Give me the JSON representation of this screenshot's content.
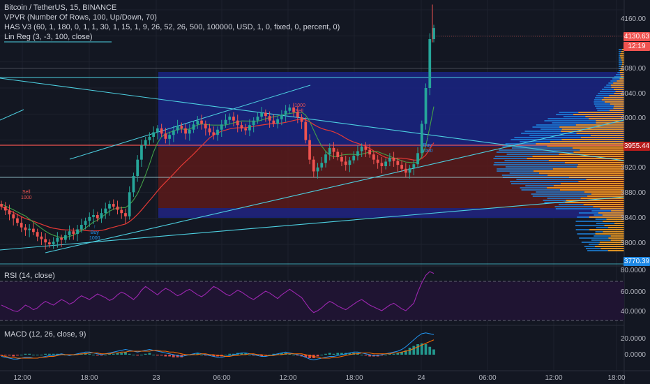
{
  "header": {
    "symbol_line": "Bitcoin / TetherUS, 15, BINANCE",
    "indicators": [
      "VPVR (Number Of Rows, 100, Up/Down, 70)",
      "HAS V3 (60, 1, 180, 0, 1, 1, 30, 1, 15, 1, 9, 26, 52, 26, 500, 100000, USD, 1, 0, fixed, 0, percent, 0)",
      "Lin Reg (3, -3, 100, close)"
    ]
  },
  "price_axis": {
    "ticks": [
      "4160.00",
      "4120.00",
      "4080.00",
      "4040.00",
      "4000.00",
      "3960.00",
      "3920.00",
      "3880.00",
      "3840.00",
      "3800.00"
    ],
    "last_price_label": "4130.63",
    "countdown_label": "12:19",
    "red_level_label": "3955.44",
    "low_level_label": "3770.39"
  },
  "rsi": {
    "title": "RSI (14, close)",
    "ticks": [
      "80.0000",
      "60.0000",
      "40.0000"
    ]
  },
  "macd": {
    "title": "MACD (12, 26, close, 9)",
    "ticks": [
      "20.0000",
      "0.0000"
    ]
  },
  "time_axis": {
    "ticks": [
      "12:00",
      "18:00",
      "23",
      "06:00",
      "12:00",
      "18:00",
      "24",
      "06:00",
      "12:00",
      "18:00"
    ]
  },
  "signals": [
    {
      "kind": "sell",
      "text": "Sell",
      "sub": "1000"
    },
    {
      "kind": "sell",
      "text": "-1000",
      "sub": "Sell"
    },
    {
      "kind": "buy",
      "text": "Buy",
      "sub": "1000"
    },
    {
      "kind": "buy",
      "text": "Buy",
      "sub": "1000"
    }
  ],
  "colors": {
    "background": "#131722",
    "up": "#26a69a",
    "down": "#ef5350",
    "buy": "#2196f3",
    "sell": "#ef5350",
    "rsi_line": "#9c27b0",
    "macd_line": "#2196f3",
    "signal_line": "#ff6d00",
    "trendline": "#00bcd4"
  },
  "chart_data": {
    "type": "candlestick",
    "price_range": [
      3770,
      4175
    ],
    "closes": [
      3858,
      3852,
      3846,
      3840,
      3833,
      3826,
      3822,
      3824,
      3819,
      3812,
      3808,
      3803,
      3800,
      3804,
      3810,
      3807,
      3814,
      3820,
      3816,
      3823,
      3830,
      3836,
      3842,
      3845,
      3840,
      3848,
      3855,
      3862,
      3858,
      3853,
      3848,
      3843,
      3880,
      3905,
      3930,
      3952,
      3960,
      3965,
      3972,
      3978,
      3970,
      3962,
      3968,
      3975,
      3982,
      3978,
      3970,
      3976,
      3984,
      3990,
      3985,
      3978,
      3972,
      3968,
      3976,
      3984,
      3991,
      3996,
      3990,
      3983,
      3978,
      3975,
      3983,
      3990,
      3996,
      4002,
      3997,
      3990,
      3985,
      3992,
      3999,
      4005,
      4010,
      4003,
      3995,
      3988,
      3960,
      3930,
      3912,
      3918,
      3925,
      3938,
      3948,
      3942,
      3934,
      3927,
      3922,
      3929,
      3936,
      3943,
      3950,
      3945,
      3938,
      3930,
      3925,
      3920,
      3927,
      3933,
      3928,
      3922,
      3916,
      3910,
      3917,
      3923,
      3940,
      3985,
      4040,
      4115,
      4132
    ],
    "rsi": [
      46,
      44,
      42,
      40,
      39,
      42,
      46,
      44,
      41,
      43,
      47,
      50,
      48,
      46,
      49,
      52,
      50,
      47,
      49,
      53,
      56,
      54,
      52,
      55,
      58,
      56,
      54,
      51,
      53,
      57,
      60,
      58,
      55,
      52,
      56,
      62,
      66,
      63,
      60,
      57,
      61,
      64,
      62,
      59,
      56,
      58,
      61,
      63,
      60,
      57,
      55,
      58,
      62,
      66,
      64,
      61,
      58,
      56,
      59,
      62,
      60,
      57,
      54,
      52,
      55,
      58,
      61,
      59,
      56,
      53,
      57,
      60,
      63,
      60,
      57,
      54,
      48,
      42,
      38,
      40,
      43,
      47,
      50,
      48,
      45,
      43,
      41,
      44,
      47,
      50,
      52,
      49,
      46,
      44,
      42,
      40,
      43,
      46,
      48,
      45,
      42,
      40,
      44,
      48,
      60,
      70,
      78,
      82,
      80
    ],
    "macd_line": [
      -2,
      -3,
      -4,
      -5,
      -5,
      -4,
      -3,
      -3,
      -4,
      -4,
      -3,
      -2,
      -1,
      -1,
      0,
      1,
      0,
      -1,
      0,
      1,
      2,
      3,
      3,
      2,
      1,
      0,
      1,
      2,
      3,
      4,
      5,
      6,
      5,
      4,
      3,
      4,
      5,
      6,
      5,
      4,
      3,
      2,
      1,
      0,
      -1,
      -2,
      -1,
      0,
      1,
      2,
      1,
      0,
      -1,
      -2,
      -3,
      -3,
      -2,
      -1,
      0,
      1,
      2,
      2,
      1,
      0,
      -1,
      -2,
      -2,
      -1,
      0,
      1,
      2,
      3,
      2,
      1,
      0,
      -1,
      -3,
      -5,
      -6,
      -5,
      -4,
      -3,
      -2,
      -2,
      -1,
      0,
      1,
      2,
      3,
      3,
      2,
      1,
      0,
      -1,
      -1,
      0,
      1,
      2,
      3,
      4,
      6,
      9,
      13,
      17,
      21,
      24,
      25,
      24,
      23
    ],
    "signal_line": [
      -1,
      -2,
      -3,
      -3,
      -4,
      -4,
      -4,
      -4,
      -4,
      -4,
      -3,
      -3,
      -2,
      -2,
      -1,
      0,
      0,
      0,
      0,
      0,
      1,
      1,
      2,
      2,
      2,
      1,
      1,
      1,
      2,
      2,
      3,
      3,
      4,
      4,
      4,
      4,
      4,
      4,
      5,
      5,
      4,
      4,
      3,
      3,
      2,
      1,
      0,
      0,
      0,
      0,
      1,
      1,
      0,
      0,
      -1,
      -1,
      -2,
      -2,
      -1,
      -1,
      0,
      0,
      1,
      1,
      0,
      0,
      -1,
      -1,
      -1,
      0,
      0,
      1,
      1,
      1,
      1,
      1,
      0,
      -1,
      -2,
      -3,
      -4,
      -4,
      -4,
      -3,
      -3,
      -2,
      -1,
      0,
      1,
      1,
      2,
      2,
      2,
      1,
      1,
      1,
      1,
      1,
      2,
      2,
      3,
      4,
      5,
      7,
      9,
      11,
      13,
      15,
      17
    ]
  }
}
